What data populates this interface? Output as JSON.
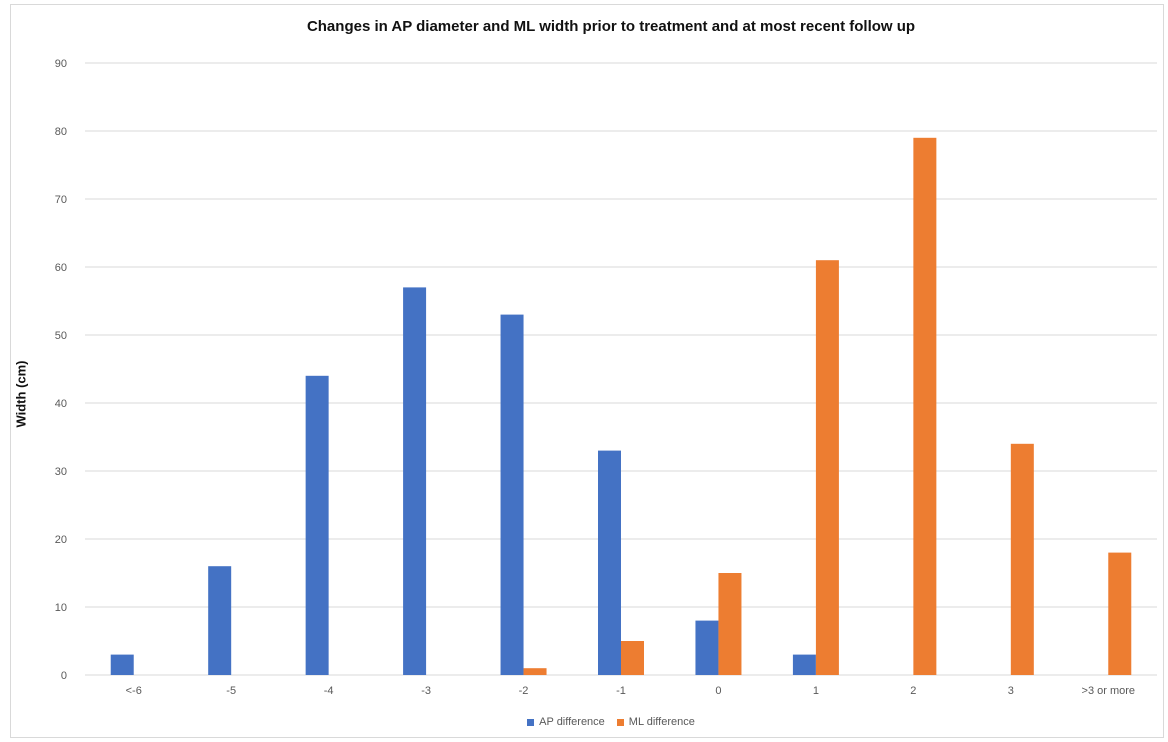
{
  "chart_data": {
    "type": "bar",
    "title": "Changes in AP diameter and ML width prior to treatment and at most recent follow up",
    "xlabel": "",
    "ylabel": "Width (cm)",
    "ylim": [
      0,
      90
    ],
    "yticks": [
      0,
      10,
      20,
      30,
      40,
      50,
      60,
      70,
      80,
      90
    ],
    "grid": true,
    "legend_position": "bottom",
    "categories": [
      "<-6",
      "-5",
      "-4",
      "-3",
      "-2",
      "-1",
      "0",
      "1",
      "2",
      "3",
      ">3 or more"
    ],
    "series": [
      {
        "name": "AP difference",
        "color": "#4472c4",
        "values": [
          3,
          16,
          44,
          57,
          53,
          33,
          8,
          3,
          0,
          0,
          0
        ]
      },
      {
        "name": "ML difference",
        "color": "#ed7d31",
        "values": [
          0,
          0,
          0,
          0,
          1,
          5,
          15,
          61,
          79,
          34,
          18
        ]
      }
    ]
  }
}
